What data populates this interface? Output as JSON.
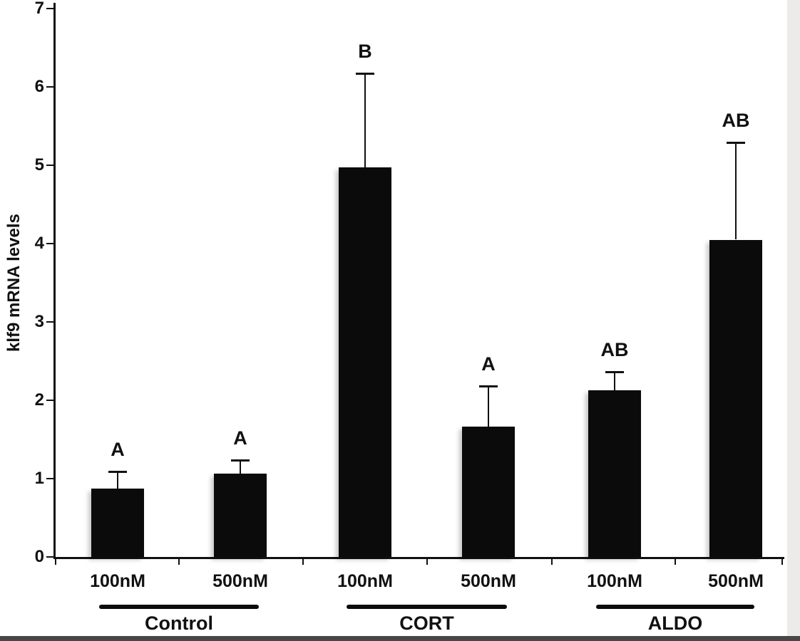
{
  "chart_data": {
    "type": "bar",
    "title": "",
    "ylabel": "klf9 mRNA levels",
    "xlabel": "",
    "ylim": [
      0,
      7
    ],
    "yticks": [
      0,
      1,
      2,
      3,
      4,
      5,
      6,
      7
    ],
    "grid": false,
    "legend": null,
    "bar_color": "#0b0b0b",
    "groups": [
      {
        "label": "Control",
        "bars": [
          {
            "label": "100nM",
            "value": 0.87,
            "error": 0.22,
            "sig": "A"
          },
          {
            "label": "500nM",
            "value": 1.06,
            "error": 0.18,
            "sig": "A"
          }
        ]
      },
      {
        "label": "CORT",
        "bars": [
          {
            "label": "100nM",
            "value": 4.97,
            "error": 1.2,
            "sig": "B"
          },
          {
            "label": "500nM",
            "value": 1.66,
            "error": 0.52,
            "sig": "A"
          }
        ]
      },
      {
        "label": "ALDO",
        "bars": [
          {
            "label": "100nM",
            "value": 2.13,
            "error": 0.23,
            "sig": "AB"
          },
          {
            "label": "500nM",
            "value": 4.05,
            "error": 1.24,
            "sig": "AB"
          }
        ]
      }
    ]
  }
}
